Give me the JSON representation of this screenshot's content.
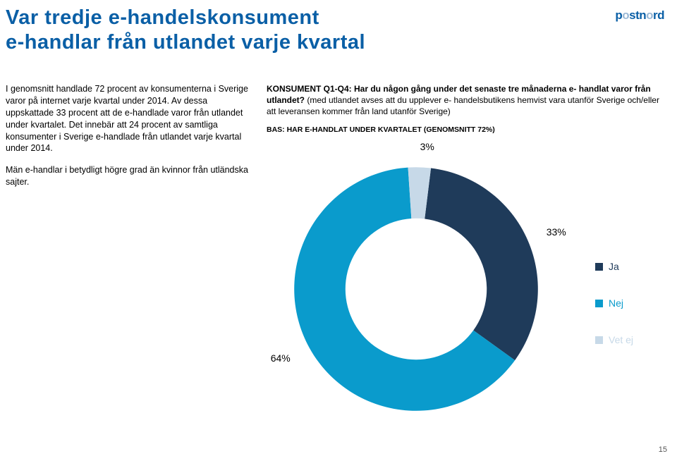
{
  "title": "Var tredje e-handelskonsument\ne-handlar från utlandet varje kvartal",
  "logo_text": "postnord",
  "left_paragraphs": [
    "I genomsnitt handlade 72 procent av konsumenterna i Sverige varor på internet varje kvartal under 2014. Av dessa uppskattade 33 procent att de e-handlade varor från utlandet under kvartalet. Det innebär att 24 procent av samtliga konsumenter i Sverige e-handlade från utlandet varje kvartal under 2014.",
    "Män e-handlar i betydligt högre grad än kvinnor från utländska sajter."
  ],
  "question_bold": "KONSUMENT Q1-Q4: Har du någon gång under det senaste tre månaderna e- handlat varor från utlandet?",
  "question_rest": " (med utlandet avses att du upplever e- handelsbutikens hemvist vara utanför Sverige och/eller att leveransen kommer från land utanför Sverige)",
  "base_line": "BAS: HAR E-HANDLAT UNDER KVARTALET (GENOMSNITT 72%)",
  "donut": {
    "type": "pie",
    "inner_ratio": 0.58,
    "background_color": "#ffffff",
    "slices": [
      {
        "label": "Ja",
        "value": 33,
        "color": "#1f3b5a",
        "label_text": "33%"
      },
      {
        "label": "Nej",
        "value": 64,
        "color": "#0a9bcc",
        "label_text": "64%"
      },
      {
        "label": "Vet ej",
        "value": 3,
        "color": "#c7d9e8",
        "label_text": "3%"
      }
    ],
    "start_angle_deg": -83
  },
  "legend": [
    {
      "label": "Ja",
      "color": "#1f3b5a"
    },
    {
      "label": "Nej",
      "color": "#0a9bcc"
    },
    {
      "label": "Vet ej",
      "color": "#c7d9e8"
    }
  ],
  "page_number": "15"
}
